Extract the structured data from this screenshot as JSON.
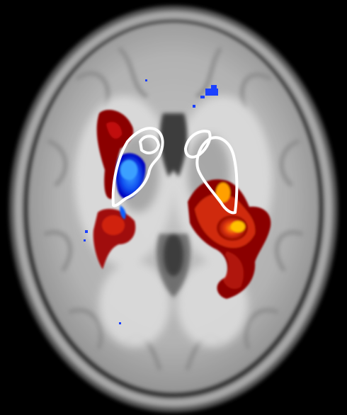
{
  "image": {
    "description_tag": "axial-brain-mri-fmri-overlay",
    "colors": {
      "background": "#000000",
      "skull": "#9a9a9a",
      "brain_tissue": "#b7b7b7",
      "white_matter": "#d9d9d9",
      "csf": "#3a3a3a",
      "activation_positive_low": "#8b0000",
      "activation_positive_mid": "#e03010",
      "activation_positive_high": "#ffb000",
      "activation_negative_low": "#0000c0",
      "activation_negative_high": "#3aa0ff",
      "roi_outline": "#ffffff"
    }
  }
}
